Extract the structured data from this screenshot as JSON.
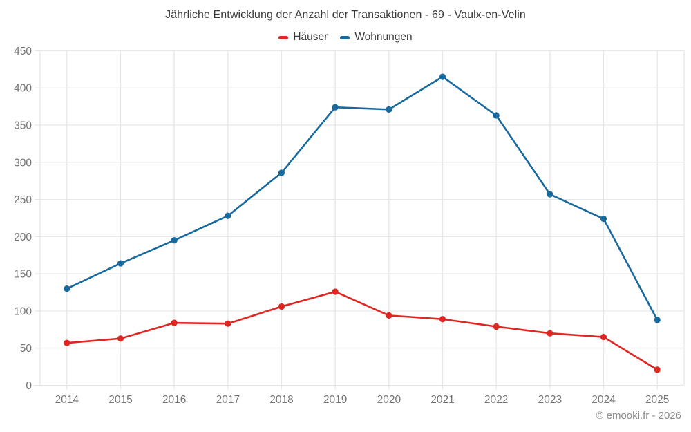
{
  "title": "Jährliche Entwicklung der Anzahl der Transaktionen - 69 - Vaulx-en-Velin",
  "copyright": "© emooki.fr - 2026",
  "colors": {
    "haeuser": "#e02622",
    "wohnungen": "#17699e",
    "grid": "#e7e7e7",
    "axis_text": "#757575",
    "title_text": "#3a3a3a",
    "copyright_text": "#8c8c8c"
  },
  "chart_data": {
    "type": "line",
    "title": "Jährliche Entwicklung der Anzahl der Transaktionen - 69 - Vaulx-en-Velin",
    "x": [
      "2014",
      "2015",
      "2016",
      "2017",
      "2018",
      "2019",
      "2020",
      "2021",
      "2022",
      "2023",
      "2024",
      "2025"
    ],
    "series": [
      {
        "name": "Häuser",
        "color": "#e02622",
        "values": [
          57,
          63,
          84,
          83,
          106,
          126,
          94,
          89,
          79,
          70,
          65,
          21
        ]
      },
      {
        "name": "Wohnungen",
        "color": "#17699e",
        "values": [
          130,
          164,
          195,
          228,
          286,
          374,
          371,
          415,
          363,
          257,
          224,
          88
        ]
      }
    ],
    "xlabel": "",
    "ylabel": "",
    "ylim": [
      0,
      450
    ],
    "ytick_step": 50,
    "grid": true,
    "legend_position": "top"
  }
}
